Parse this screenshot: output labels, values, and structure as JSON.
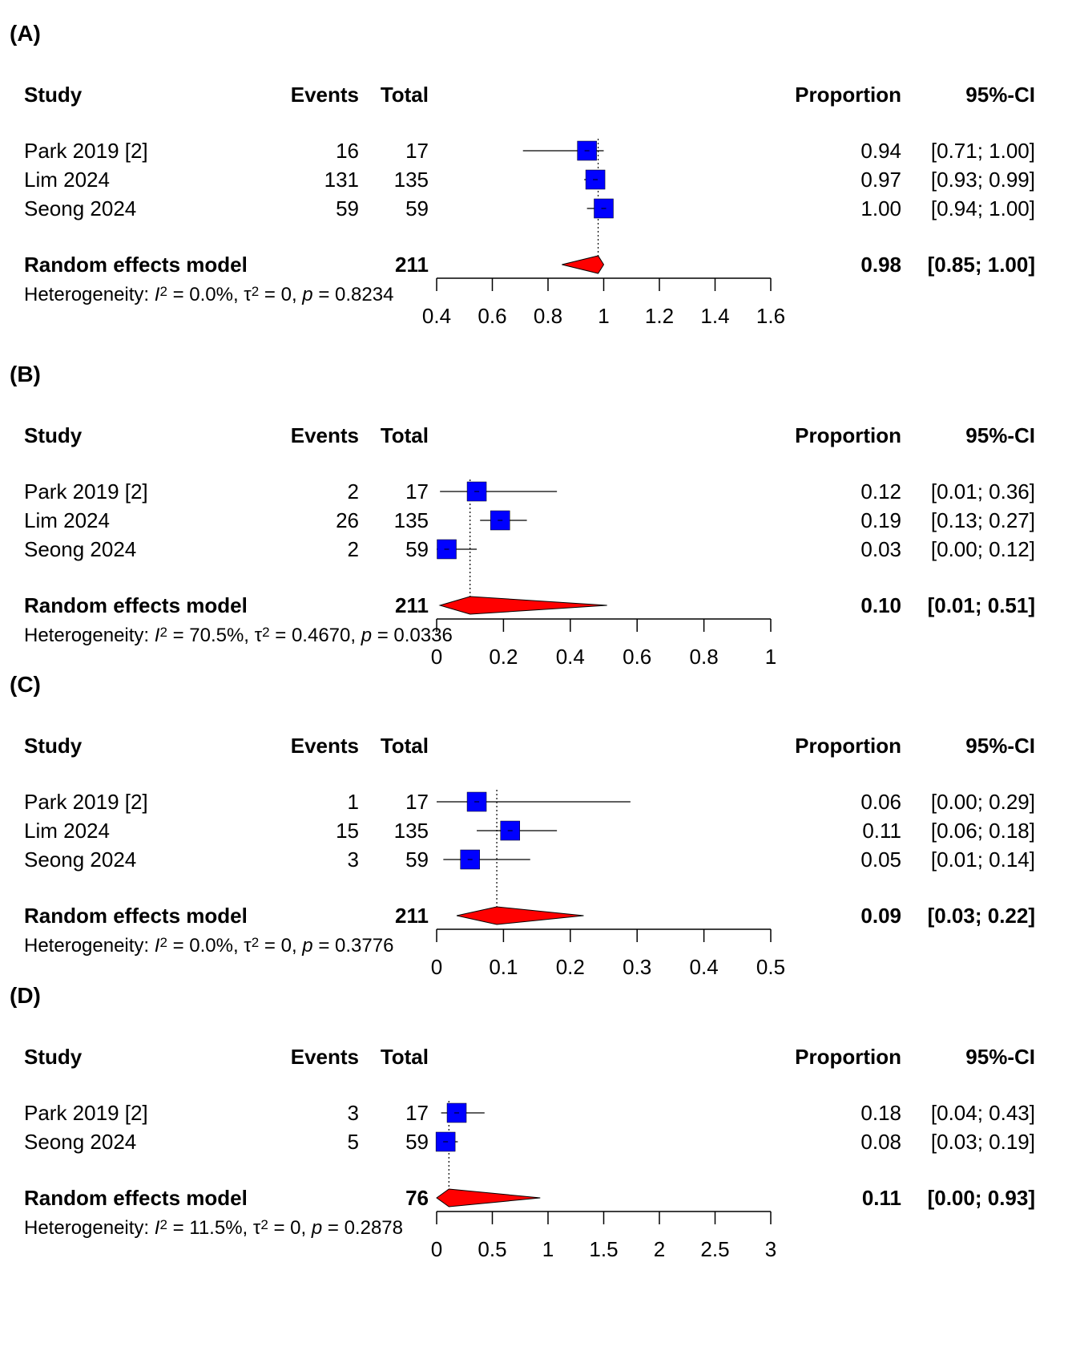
{
  "header": {
    "study": "Study",
    "events": "Events",
    "total": "Total",
    "proportion": "Proportion",
    "ci": "95%-CI"
  },
  "chart_data": [
    {
      "type": "forest",
      "panel_label": "(A)",
      "xlim": [
        0.4,
        1.6
      ],
      "ticks": [
        0.4,
        0.6,
        0.8,
        1,
        1.2,
        1.4,
        1.6
      ],
      "tick_labels": [
        "0.4",
        "0.6",
        "0.8",
        "1",
        "1.2",
        "1.4",
        "1.6"
      ],
      "studies": [
        {
          "name": "Park 2019 [2]",
          "events": "16",
          "total": "17",
          "proportion": 0.94,
          "lower": 0.71,
          "upper": 1.0,
          "prop_label": "0.94",
          "ci_label": "[0.71; 1.00]"
        },
        {
          "name": "Lim 2024",
          "events": "131",
          "total": "135",
          "proportion": 0.97,
          "lower": 0.93,
          "upper": 0.99,
          "prop_label": "0.97",
          "ci_label": "[0.93; 0.99]"
        },
        {
          "name": "Seong 2024",
          "events": "59",
          "total": "59",
          "proportion": 1.0,
          "lower": 0.94,
          "upper": 1.0,
          "prop_label": "1.00",
          "ci_label": "[0.94; 1.00]"
        }
      ],
      "model": {
        "name": "Random effects model",
        "total": "211",
        "estimate": 0.98,
        "lower": 0.85,
        "upper": 1.0,
        "prop_label": "0.98",
        "ci_label": "[0.85; 1.00]"
      },
      "heterogeneity": {
        "prefix": "Heterogeneity: ",
        "i2": "0.0%",
        "tau2": "0",
        "p": "0.8234"
      }
    },
    {
      "type": "forest",
      "panel_label": "(B)",
      "xlim": [
        0,
        1
      ],
      "ticks": [
        0,
        0.2,
        0.4,
        0.6,
        0.8,
        1
      ],
      "tick_labels": [
        "0",
        "0.2",
        "0.4",
        "0.6",
        "0.8",
        "1"
      ],
      "studies": [
        {
          "name": "Park 2019 [2]",
          "events": "2",
          "total": "17",
          "proportion": 0.12,
          "lower": 0.01,
          "upper": 0.36,
          "prop_label": "0.12",
          "ci_label": "[0.01; 0.36]"
        },
        {
          "name": "Lim 2024",
          "events": "26",
          "total": "135",
          "proportion": 0.19,
          "lower": 0.13,
          "upper": 0.27,
          "prop_label": "0.19",
          "ci_label": "[0.13; 0.27]"
        },
        {
          "name": "Seong 2024",
          "events": "2",
          "total": "59",
          "proportion": 0.03,
          "lower": 0.0,
          "upper": 0.12,
          "prop_label": "0.03",
          "ci_label": "[0.00; 0.12]"
        }
      ],
      "model": {
        "name": "Random effects model",
        "total": "211",
        "estimate": 0.1,
        "lower": 0.01,
        "upper": 0.51,
        "prop_label": "0.10",
        "ci_label": "[0.01; 0.51]"
      },
      "heterogeneity": {
        "prefix": "Heterogeneity: ",
        "i2": "70.5%",
        "tau2": "0.4670",
        "p": "0.0336"
      }
    },
    {
      "type": "forest",
      "panel_label": "(C)",
      "xlim": [
        0,
        0.5
      ],
      "ticks": [
        0,
        0.1,
        0.2,
        0.3,
        0.4,
        0.5
      ],
      "tick_labels": [
        "0",
        "0.1",
        "0.2",
        "0.3",
        "0.4",
        "0.5"
      ],
      "studies": [
        {
          "name": "Park 2019 [2]",
          "events": "1",
          "total": "17",
          "proportion": 0.06,
          "lower": 0.0,
          "upper": 0.29,
          "prop_label": "0.06",
          "ci_label": "[0.00; 0.29]"
        },
        {
          "name": "Lim 2024",
          "events": "15",
          "total": "135",
          "proportion": 0.11,
          "lower": 0.06,
          "upper": 0.18,
          "prop_label": "0.11",
          "ci_label": "[0.06; 0.18]"
        },
        {
          "name": "Seong 2024",
          "events": "3",
          "total": "59",
          "proportion": 0.05,
          "lower": 0.01,
          "upper": 0.14,
          "prop_label": "0.05",
          "ci_label": "[0.01; 0.14]"
        }
      ],
      "model": {
        "name": "Random effects model",
        "total": "211",
        "estimate": 0.09,
        "lower": 0.03,
        "upper": 0.22,
        "prop_label": "0.09",
        "ci_label": "[0.03; 0.22]"
      },
      "heterogeneity": {
        "prefix": "Heterogeneity: ",
        "i2": "0.0%",
        "tau2": "0",
        "p": "0.3776"
      }
    },
    {
      "type": "forest",
      "panel_label": "(D)",
      "xlim": [
        0,
        3
      ],
      "ticks": [
        0,
        0.5,
        1,
        1.5,
        2,
        2.5,
        3
      ],
      "tick_labels": [
        "0",
        "0.5",
        "1",
        "1.5",
        "2",
        "2.5",
        "3"
      ],
      "studies": [
        {
          "name": "Park 2019 [2]",
          "events": "3",
          "total": "17",
          "proportion": 0.18,
          "lower": 0.04,
          "upper": 0.43,
          "prop_label": "0.18",
          "ci_label": "[0.04; 0.43]"
        },
        {
          "name": "Seong 2024",
          "events": "5",
          "total": "59",
          "proportion": 0.08,
          "lower": 0.03,
          "upper": 0.19,
          "prop_label": "0.08",
          "ci_label": "[0.03; 0.19]"
        }
      ],
      "model": {
        "name": "Random effects model",
        "total": "76",
        "estimate": 0.11,
        "lower": 0.0,
        "upper": 0.93,
        "prop_label": "0.11",
        "ci_label": "[0.00; 0.93]"
      },
      "heterogeneity": {
        "prefix": "Heterogeneity: ",
        "i2": "11.5%",
        "tau2": "0",
        "p": "0.2878"
      }
    }
  ],
  "colors": {
    "study_box": "#0000ff",
    "diamond": "#ff0000"
  }
}
